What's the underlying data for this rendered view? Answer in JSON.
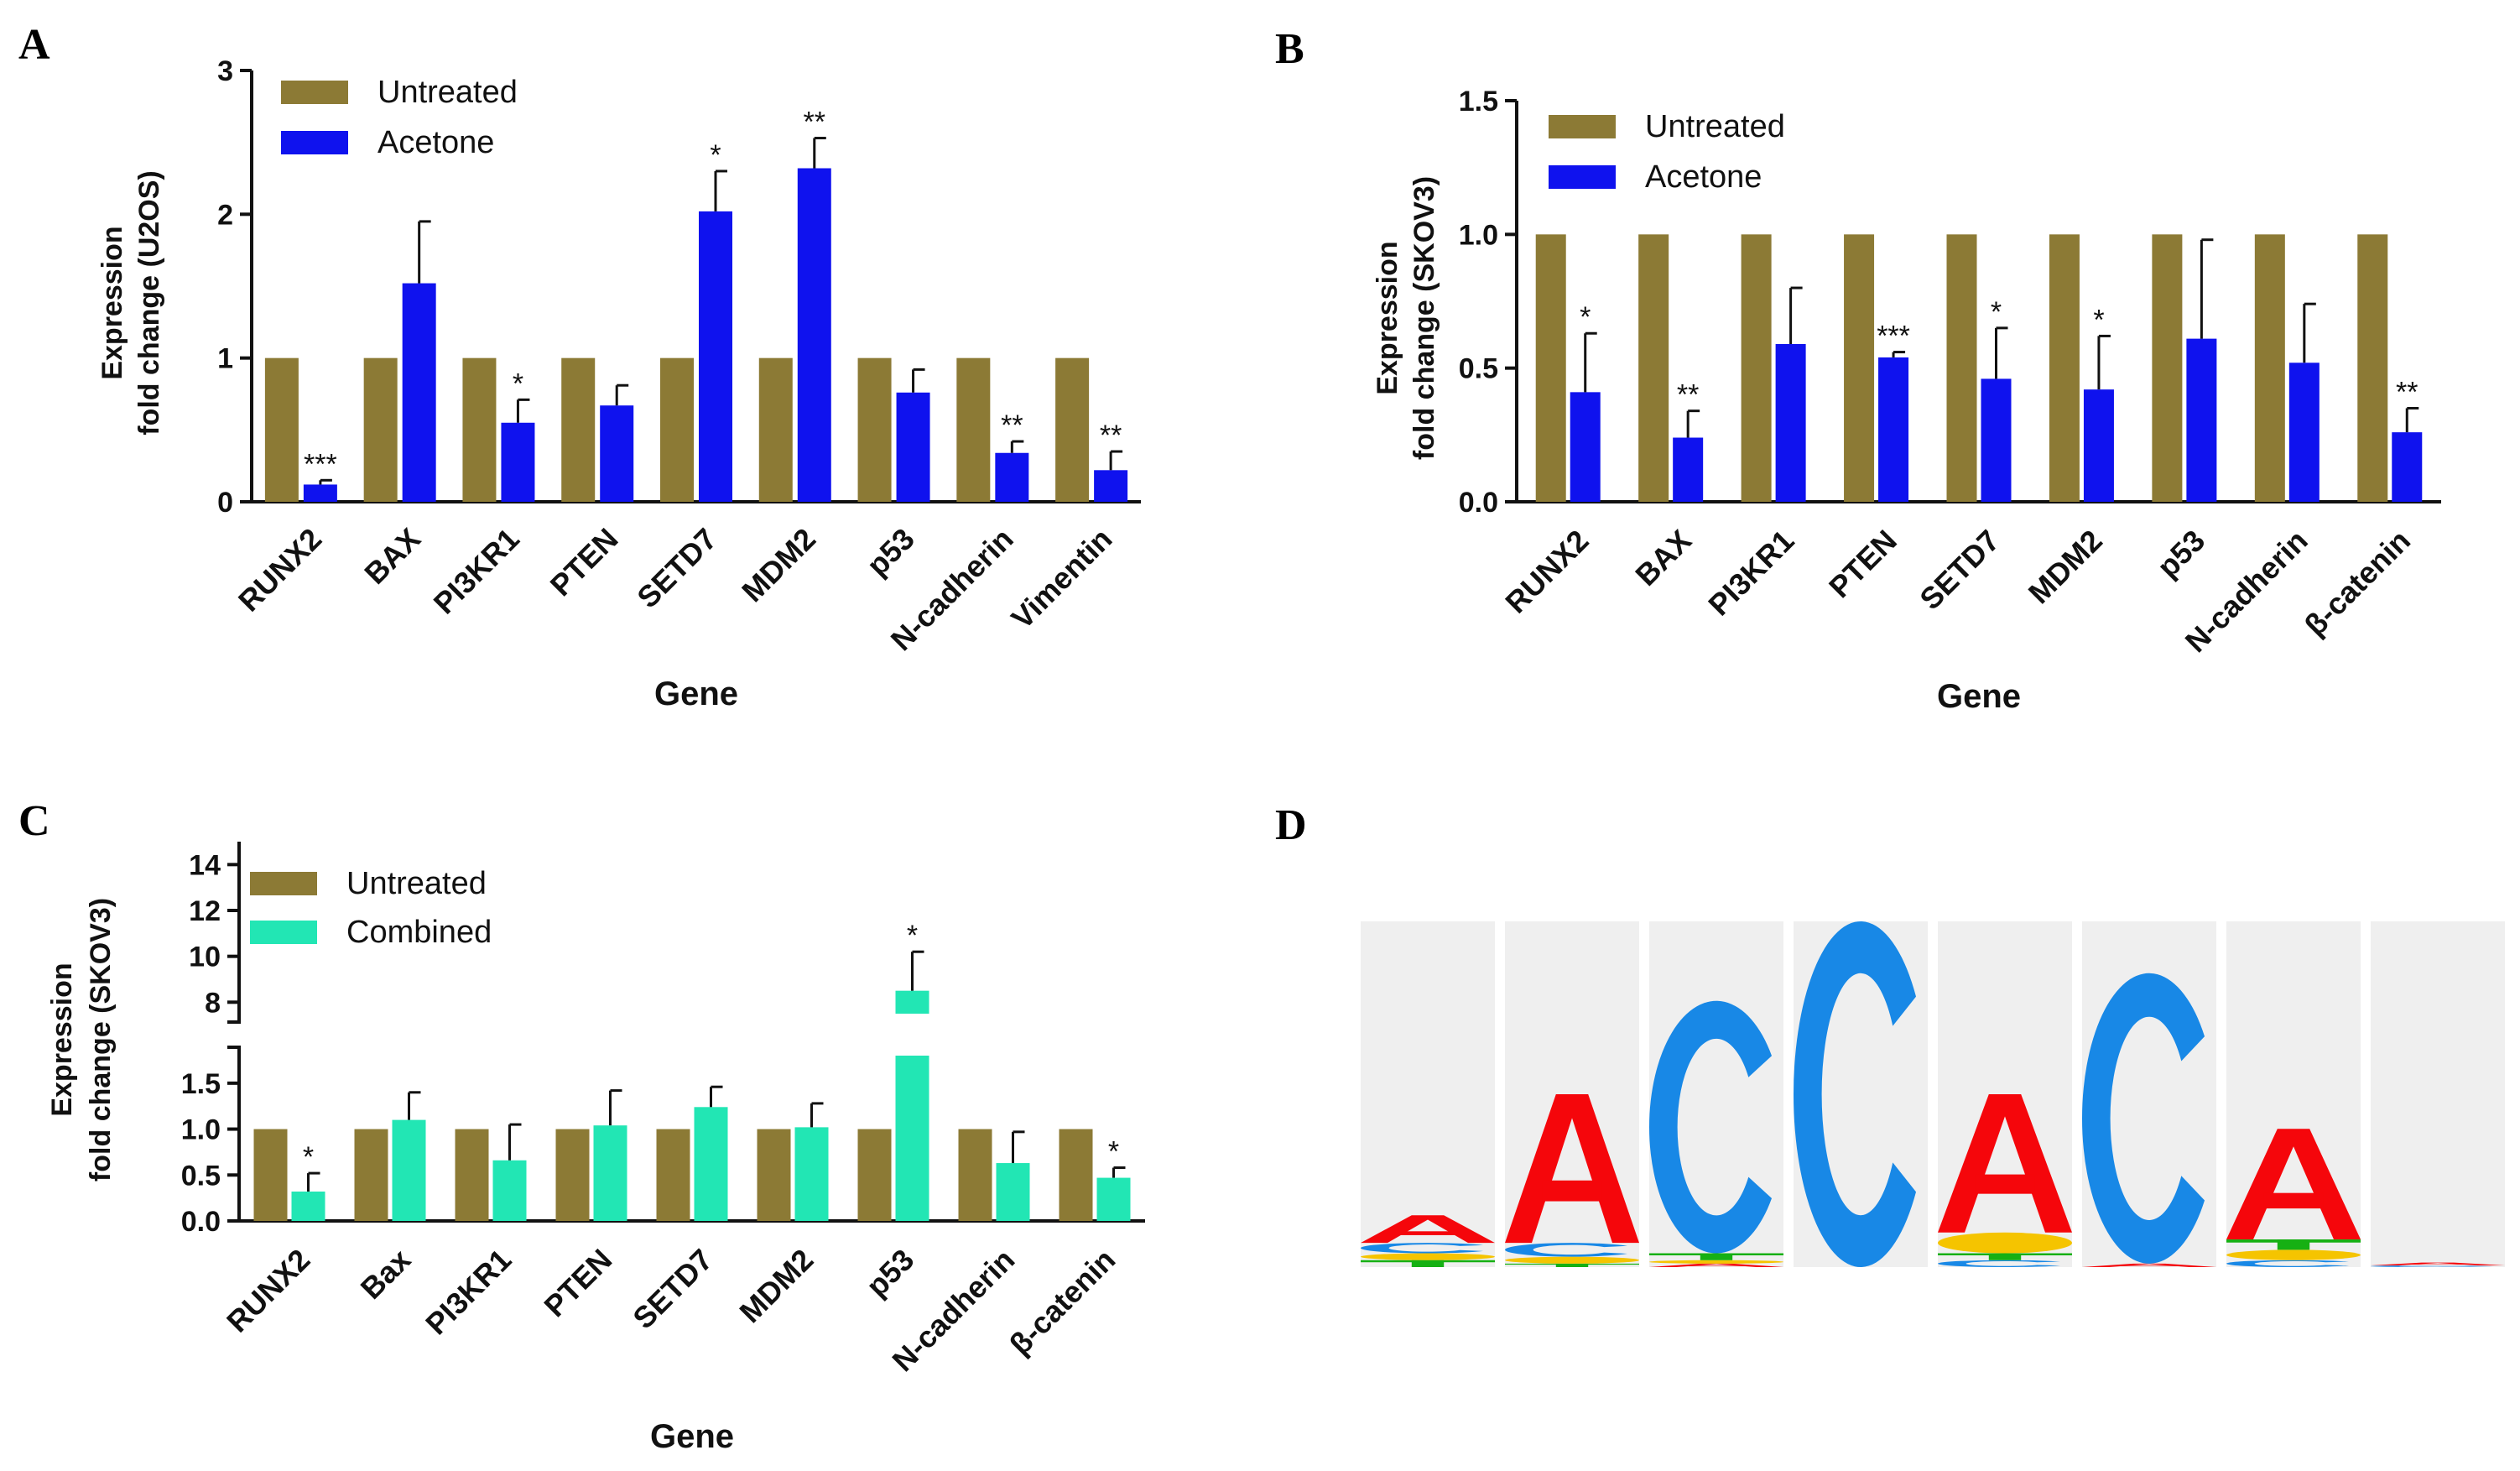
{
  "panels": {
    "A": {
      "letter": "A"
    },
    "B": {
      "letter": "B"
    },
    "C": {
      "letter": "C"
    },
    "D": {
      "letter": "D"
    }
  },
  "colors": {
    "untreated": "#8c7a35",
    "acetone": "#0f12ee",
    "combined": "#22e6b4",
    "logo_A": "#f5060b",
    "logo_C": "#1888e6",
    "logo_G": "#f5c400",
    "logo_T": "#16b013",
    "logo_bg": "#efefef"
  },
  "chart_data": [
    {
      "id": "A",
      "type": "bar",
      "categories": [
        "RUNX2",
        "BAX",
        "PI3KR1",
        "PTEN",
        "SETD7",
        "MDM2",
        "p53",
        "N-cadherin",
        "Vimentin"
      ],
      "series": [
        {
          "name": "Untreated",
          "values": [
            1,
            1,
            1,
            1,
            1,
            1,
            1,
            1,
            1
          ]
        },
        {
          "name": "Acetone",
          "values": [
            0.12,
            1.52,
            0.55,
            0.67,
            2.02,
            2.32,
            0.76,
            0.34,
            0.22
          ],
          "errors": [
            0.03,
            0.43,
            0.16,
            0.14,
            0.28,
            0.21,
            0.16,
            0.08,
            0.13
          ]
        }
      ],
      "significance": [
        "***",
        "",
        "*",
        "",
        "*",
        "**",
        "",
        "**",
        "**"
      ],
      "ylabel": [
        "Expression",
        "fold change (U2OS)"
      ],
      "xlabel": "Gene",
      "ylim": [
        0,
        3
      ],
      "yticks": [
        "0",
        "1",
        "2",
        "3"
      ],
      "legend": [
        "Untreated",
        "Acetone"
      ]
    },
    {
      "id": "B",
      "type": "bar",
      "categories": [
        "RUNX2",
        "BAX",
        "PI3KR1",
        "PTEN",
        "SETD7",
        "MDM2",
        "p53",
        "N-cadherin",
        "β-catenin"
      ],
      "series": [
        {
          "name": "Untreated",
          "values": [
            1,
            1,
            1,
            1,
            1,
            1,
            1,
            1,
            1
          ]
        },
        {
          "name": "Acetone",
          "values": [
            0.41,
            0.24,
            0.59,
            0.54,
            0.46,
            0.42,
            0.61,
            0.52,
            0.26
          ],
          "errors": [
            0.22,
            0.1,
            0.21,
            0.02,
            0.19,
            0.2,
            0.37,
            0.22,
            0.09
          ]
        }
      ],
      "significance": [
        "*",
        "**",
        "",
        "***",
        "*",
        "*",
        "",
        "",
        "**"
      ],
      "ylabel": [
        "Expression",
        "fold change (SKOV3)"
      ],
      "xlabel": "Gene",
      "ylim": [
        0,
        1.5
      ],
      "yticks": [
        "0.0",
        "0.5",
        "1.0",
        "1.5"
      ],
      "legend": [
        "Untreated",
        "Acetone"
      ]
    },
    {
      "id": "C",
      "type": "bar",
      "categories": [
        "RUNX2",
        "Bax",
        "PI3KR1",
        "PTEN",
        "SETD7",
        "MDM2",
        "p53",
        "N-cadherin",
        "β-catenin"
      ],
      "series": [
        {
          "name": "Untreated",
          "values": [
            1,
            1,
            1,
            1,
            1,
            1,
            1,
            1,
            1
          ]
        },
        {
          "name": "Combined",
          "values": [
            0.32,
            1.1,
            0.66,
            1.04,
            1.24,
            1.02,
            8.5,
            0.63,
            0.47
          ],
          "errors": [
            0.2,
            0.3,
            0.39,
            0.38,
            0.22,
            0.26,
            1.7,
            0.34,
            0.11
          ]
        }
      ],
      "significance": [
        "*",
        "",
        "",
        "",
        "",
        "",
        "*",
        "",
        "*"
      ],
      "ylabel": [
        "Expression",
        "fold change (SKOV3)"
      ],
      "xlabel": "Gene",
      "ylim_lower": [
        0,
        1.8
      ],
      "ylim_upper": [
        7.5,
        15
      ],
      "yticks_lower": [
        "0.0",
        "0.5",
        "1.0",
        "1.5"
      ],
      "yticks_upper": [
        "8",
        "10",
        "12",
        "14"
      ],
      "axis_break": true,
      "legend": [
        "Untreated",
        "Combined"
      ]
    }
  ],
  "sequence_logo": {
    "positions": [
      {
        "letters": [
          {
            "base": "T",
            "h": 0.02
          },
          {
            "base": "G",
            "h": 0.02
          },
          {
            "base": "C",
            "h": 0.03
          },
          {
            "base": "A",
            "h": 0.08
          }
        ]
      },
      {
        "letters": [
          {
            "base": "T",
            "h": 0.01
          },
          {
            "base": "G",
            "h": 0.02
          },
          {
            "base": "C",
            "h": 0.04
          },
          {
            "base": "A",
            "h": 0.43
          }
        ]
      },
      {
        "letters": [
          {
            "base": "A",
            "h": 0.01
          },
          {
            "base": "G",
            "h": 0.01
          },
          {
            "base": "T",
            "h": 0.02
          },
          {
            "base": "C",
            "h": 0.73
          }
        ]
      },
      {
        "letters": [
          {
            "base": "C",
            "h": 1.0
          }
        ]
      },
      {
        "letters": [
          {
            "base": "C",
            "h": 0.02
          },
          {
            "base": "T",
            "h": 0.02
          },
          {
            "base": "G",
            "h": 0.06
          },
          {
            "base": "A",
            "h": 0.4
          }
        ]
      },
      {
        "letters": [
          {
            "base": "A",
            "h": 0.01
          },
          {
            "base": "C",
            "h": 0.84
          }
        ]
      },
      {
        "letters": [
          {
            "base": "C",
            "h": 0.02
          },
          {
            "base": "G",
            "h": 0.03
          },
          {
            "base": "T",
            "h": 0.03
          },
          {
            "base": "A",
            "h": 0.32
          }
        ]
      },
      {
        "letters": [
          {
            "base": "C",
            "h": 0.005
          },
          {
            "base": "A",
            "h": 0.008
          }
        ]
      }
    ]
  }
}
